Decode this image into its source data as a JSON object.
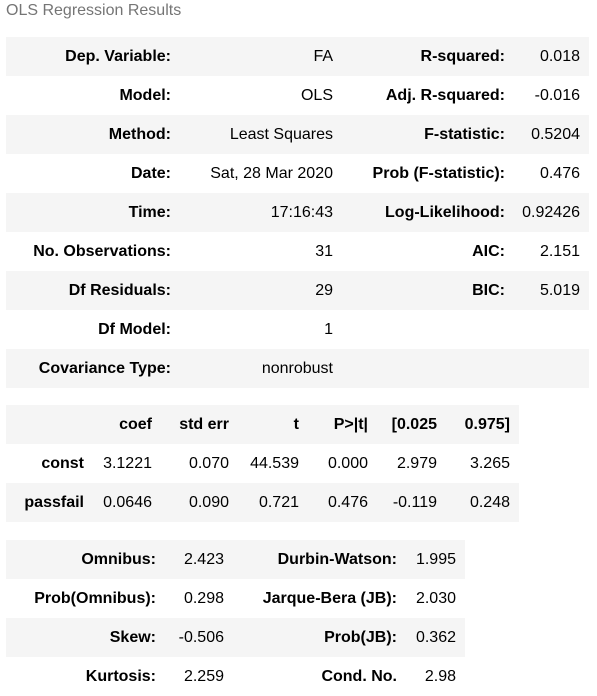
{
  "caption": "OLS Regression Results",
  "summary": [
    {
      "k1": "Dep. Variable:",
      "v1": "FA",
      "k2": "R-squared:",
      "v2": "0.018"
    },
    {
      "k1": "Model:",
      "v1": "OLS",
      "k2": "Adj. R-squared:",
      "v2": "-0.016"
    },
    {
      "k1": "Method:",
      "v1": "Least Squares",
      "k2": "F-statistic:",
      "v2": "0.5204"
    },
    {
      "k1": "Date:",
      "v1": "Sat, 28 Mar 2020",
      "k2": "Prob (F-statistic):",
      "v2": "0.476"
    },
    {
      "k1": "Time:",
      "v1": "17:16:43",
      "k2": "Log-Likelihood:",
      "v2": "0.92426"
    },
    {
      "k1": "No. Observations:",
      "v1": "31",
      "k2": "AIC:",
      "v2": "2.151"
    },
    {
      "k1": "Df Residuals:",
      "v1": "29",
      "k2": "BIC:",
      "v2": "5.019"
    },
    {
      "k1": "Df Model:",
      "v1": "1",
      "k2": "",
      "v2": ""
    },
    {
      "k1": "Covariance Type:",
      "v1": "nonrobust",
      "k2": "",
      "v2": ""
    }
  ],
  "coef_table": {
    "headers": [
      "",
      "coef",
      "std err",
      "t",
      "P>|t|",
      "[0.025",
      "0.975]"
    ],
    "rows": [
      {
        "name": "const",
        "cells": [
          "3.1221",
          "0.070",
          "44.539",
          "0.000",
          "2.979",
          "3.265"
        ]
      },
      {
        "name": "passfail",
        "cells": [
          "0.0646",
          "0.090",
          "0.721",
          "0.476",
          "-0.119",
          "0.248"
        ]
      }
    ]
  },
  "diagnostics": [
    {
      "k1": "Omnibus:",
      "v1": "2.423",
      "k2": "Durbin-Watson:",
      "v2": "1.995"
    },
    {
      "k1": "Prob(Omnibus):",
      "v1": "0.298",
      "k2": "Jarque-Bera (JB):",
      "v2": "2.030"
    },
    {
      "k1": "Skew:",
      "v1": "-0.506",
      "k2": "Prob(JB):",
      "v2": "0.362"
    },
    {
      "k1": "Kurtosis:",
      "v1": "2.259",
      "k2": "Cond. No.",
      "v2": "2.98"
    }
  ]
}
